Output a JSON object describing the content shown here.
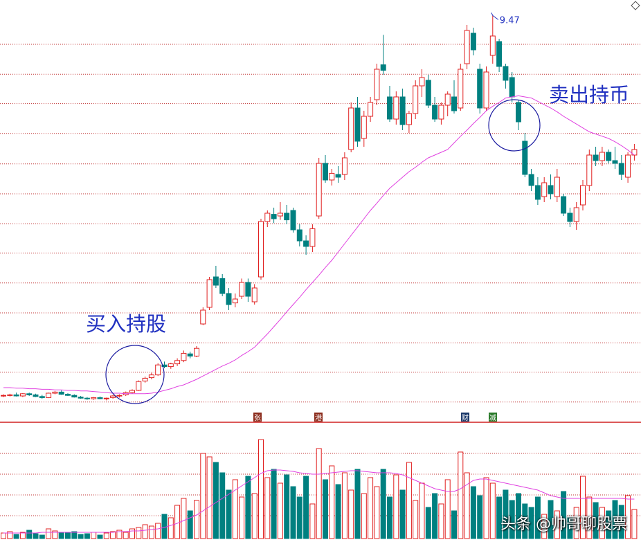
{
  "chart_data": {
    "type": "candlestick",
    "ylim": [
      2.1,
      9.75
    ],
    "ygrid": [
      8.95,
      8.41,
      7.88,
      7.34,
      6.79,
      6.25,
      5.71,
      5.18,
      4.64,
      4.1,
      3.56,
      3.03,
      2.49
    ],
    "vol_lim": [
      0,
      166
    ],
    "vol_grid": [
      33,
      63,
      93,
      123
    ],
    "up_color": "#e02020",
    "down_color": "#008080",
    "ma_color": "#e040e0",
    "grid_color": "#c03030",
    "ohlc": [
      [
        2.6,
        2.63,
        2.58,
        2.61
      ],
      [
        2.61,
        2.64,
        2.59,
        2.62
      ],
      [
        2.62,
        2.66,
        2.59,
        2.6
      ],
      [
        2.6,
        2.65,
        2.58,
        2.64
      ],
      [
        2.64,
        2.66,
        2.6,
        2.62
      ],
      [
        2.62,
        2.64,
        2.58,
        2.59
      ],
      [
        2.59,
        2.62,
        2.55,
        2.57
      ],
      [
        2.57,
        2.66,
        2.56,
        2.65
      ],
      [
        2.65,
        2.69,
        2.63,
        2.67
      ],
      [
        2.67,
        2.7,
        2.62,
        2.63
      ],
      [
        2.63,
        2.65,
        2.6,
        2.61
      ],
      [
        2.61,
        2.63,
        2.57,
        2.58
      ],
      [
        2.58,
        2.6,
        2.55,
        2.56
      ],
      [
        2.56,
        2.58,
        2.53,
        2.55
      ],
      [
        2.55,
        2.58,
        2.53,
        2.57
      ],
      [
        2.57,
        2.59,
        2.54,
        2.55
      ],
      [
        2.55,
        2.57,
        2.52,
        2.56
      ],
      [
        2.57,
        2.62,
        2.55,
        2.6
      ],
      [
        2.6,
        2.63,
        2.57,
        2.61
      ],
      [
        2.62,
        2.68,
        2.6,
        2.66
      ],
      [
        2.66,
        2.72,
        2.64,
        2.7
      ],
      [
        2.7,
        2.88,
        2.69,
        2.86
      ],
      [
        2.87,
        2.95,
        2.84,
        2.92
      ],
      [
        2.93,
        3.02,
        2.9,
        2.98
      ],
      [
        2.98,
        3.19,
        2.96,
        3.16
      ],
      [
        3.16,
        3.22,
        3.1,
        3.13
      ],
      [
        3.13,
        3.2,
        3.09,
        3.18
      ],
      [
        3.18,
        3.28,
        3.14,
        3.24
      ],
      [
        3.24,
        3.42,
        3.21,
        3.37
      ],
      [
        3.36,
        3.4,
        3.28,
        3.32
      ],
      [
        3.32,
        3.5,
        3.3,
        3.46
      ],
      [
        3.9,
        4.2,
        3.88,
        4.15
      ],
      [
        4.2,
        4.75,
        4.15,
        4.7
      ],
      [
        4.75,
        4.95,
        4.55,
        4.6
      ],
      [
        4.72,
        4.8,
        4.4,
        4.45
      ],
      [
        4.45,
        4.55,
        4.15,
        4.25
      ],
      [
        4.28,
        4.45,
        4.2,
        4.35
      ],
      [
        4.4,
        4.72,
        4.35,
        4.65
      ],
      [
        4.65,
        4.72,
        4.3,
        4.4
      ],
      [
        4.3,
        4.62,
        4.25,
        4.55
      ],
      [
        4.75,
        5.8,
        4.7,
        5.75
      ],
      [
        5.75,
        5.95,
        5.65,
        5.9
      ],
      [
        5.88,
        6.0,
        5.72,
        5.8
      ],
      [
        5.85,
        6.1,
        5.78,
        5.9
      ],
      [
        5.9,
        6.05,
        5.7,
        5.78
      ],
      [
        5.95,
        6.0,
        5.55,
        5.6
      ],
      [
        5.6,
        5.7,
        5.3,
        5.4
      ],
      [
        5.4,
        5.5,
        5.15,
        5.3
      ],
      [
        5.3,
        5.7,
        5.2,
        5.62
      ],
      [
        5.85,
        6.9,
        5.8,
        6.8
      ],
      [
        6.8,
        6.95,
        6.45,
        6.5
      ],
      [
        6.5,
        6.7,
        6.4,
        6.62
      ],
      [
        6.6,
        6.75,
        6.45,
        6.55
      ],
      [
        6.6,
        7.0,
        6.5,
        6.9
      ],
      [
        7.05,
        7.9,
        7.0,
        7.8
      ],
      [
        7.8,
        8.0,
        7.1,
        7.2
      ],
      [
        7.25,
        7.75,
        7.1,
        7.65
      ],
      [
        7.65,
        8.0,
        7.55,
        7.9
      ],
      [
        7.95,
        8.6,
        7.85,
        8.5
      ],
      [
        8.58,
        9.12,
        8.4,
        8.48
      ],
      [
        8.0,
        8.2,
        7.55,
        7.6
      ],
      [
        7.6,
        8.1,
        7.5,
        8.0
      ],
      [
        8.0,
        8.15,
        7.4,
        7.5
      ],
      [
        7.5,
        7.75,
        7.35,
        7.7
      ],
      [
        7.7,
        8.3,
        7.6,
        8.2
      ],
      [
        8.2,
        8.5,
        8.0,
        8.35
      ],
      [
        8.3,
        8.4,
        7.8,
        7.85
      ],
      [
        7.85,
        8.0,
        7.55,
        7.6
      ],
      [
        7.6,
        7.9,
        7.5,
        7.85
      ],
      [
        7.85,
        8.1,
        7.65,
        8.05
      ],
      [
        8.0,
        8.3,
        7.7,
        7.75
      ],
      [
        7.8,
        8.6,
        7.75,
        8.5
      ],
      [
        8.6,
        9.3,
        8.5,
        9.2
      ],
      [
        9.15,
        9.25,
        8.75,
        8.85
      ],
      [
        8.5,
        8.6,
        7.7,
        7.8
      ],
      [
        7.8,
        8.55,
        7.75,
        8.45
      ],
      [
        8.75,
        9.47,
        8.6,
        9.1
      ],
      [
        9.0,
        9.05,
        8.45,
        8.55
      ],
      [
        8.55,
        8.6,
        8.15,
        8.3
      ],
      [
        8.35,
        8.45,
        7.9,
        8.0
      ],
      [
        7.9,
        7.95,
        7.4,
        7.55
      ],
      [
        7.2,
        7.35,
        6.55,
        6.6
      ],
      [
        6.6,
        6.7,
        6.3,
        6.4
      ],
      [
        6.4,
        6.55,
        6.05,
        6.15
      ],
      [
        6.2,
        6.55,
        6.1,
        6.45
      ],
      [
        6.4,
        6.6,
        6.15,
        6.25
      ],
      [
        6.2,
        6.7,
        6.1,
        6.55
      ],
      [
        6.2,
        6.25,
        5.85,
        5.9
      ],
      [
        5.9,
        6.0,
        5.65,
        5.75
      ],
      [
        5.75,
        6.1,
        5.6,
        6.0
      ],
      [
        6.05,
        6.5,
        5.95,
        6.4
      ],
      [
        6.4,
        7.05,
        6.3,
        6.95
      ],
      [
        6.95,
        7.1,
        6.75,
        6.85
      ],
      [
        6.85,
        7.1,
        6.75,
        7.0
      ],
      [
        7.0,
        7.05,
        6.8,
        6.85
      ],
      [
        6.85,
        7.1,
        6.7,
        6.8
      ],
      [
        6.8,
        6.95,
        6.5,
        6.6
      ],
      [
        6.55,
        7.0,
        6.45,
        6.95
      ],
      [
        6.95,
        7.15,
        6.85,
        7.05
      ]
    ],
    "ma": [
      2.75,
      2.75,
      2.74,
      2.74,
      2.73,
      2.73,
      2.72,
      2.72,
      2.71,
      2.71,
      2.7,
      2.7,
      2.69,
      2.69,
      2.68,
      2.67,
      2.66,
      2.65,
      2.65,
      2.64,
      2.64,
      2.64,
      2.64,
      2.65,
      2.67,
      2.7,
      2.73,
      2.77,
      2.8,
      2.85,
      2.9,
      2.96,
      3.02,
      3.08,
      3.14,
      3.19,
      3.25,
      3.33,
      3.4,
      3.48,
      3.6,
      3.72,
      3.85,
      3.98,
      4.12,
      4.25,
      4.38,
      4.52,
      4.65,
      4.78,
      4.92,
      5.05,
      5.2,
      5.35,
      5.5,
      5.65,
      5.8,
      5.95,
      6.08,
      6.22,
      6.35,
      6.45,
      6.55,
      6.65,
      6.73,
      6.82,
      6.9,
      6.95,
      7.0,
      7.05,
      7.17,
      7.29,
      7.4,
      7.52,
      7.63,
      7.75,
      7.83,
      7.9,
      7.98,
      8.0,
      8.02,
      8.0,
      7.98,
      7.92,
      7.86,
      7.8,
      7.73,
      7.65,
      7.58,
      7.51,
      7.44,
      7.37,
      7.33,
      7.29,
      7.25,
      7.19,
      7.12,
      7.04,
      6.95
    ],
    "volume": [
      8,
      10,
      6,
      9,
      12,
      7,
      5,
      14,
      11,
      9,
      8,
      10,
      6,
      7,
      9,
      5,
      8,
      10,
      12,
      9,
      14,
      16,
      20,
      18,
      22,
      35,
      30,
      48,
      58,
      40,
      55,
      123,
      118,
      110,
      95,
      70,
      85,
      60,
      90,
      65,
      143,
      88,
      100,
      80,
      92,
      75,
      60,
      90,
      50,
      130,
      85,
      105,
      78,
      95,
      70,
      100,
      65,
      88,
      75,
      100,
      60,
      92,
      70,
      110,
      55,
      80,
      45,
      65,
      50,
      85,
      40,
      125,
      95,
      75,
      62,
      88,
      80,
      60,
      70,
      55,
      65,
      50,
      45,
      60,
      35,
      55,
      40,
      68,
      30,
      45,
      90,
      60,
      52,
      45,
      40,
      55,
      48,
      62,
      42
    ],
    "vol_ma": [
      8,
      8,
      8,
      8,
      8,
      8,
      9,
      9,
      9,
      9,
      9,
      9,
      9,
      9,
      9,
      9,
      9,
      9,
      10,
      10,
      11,
      11,
      12,
      13,
      14,
      16,
      19,
      22,
      26,
      30,
      34,
      40,
      46,
      52,
      58,
      64,
      70,
      76,
      82,
      88,
      94,
      98,
      99,
      99,
      98,
      97,
      95,
      94,
      93,
      93,
      94,
      95,
      96,
      97,
      98,
      98,
      97,
      96,
      95,
      95,
      95,
      94,
      92,
      88,
      84,
      80,
      76,
      72,
      70,
      68,
      68,
      72,
      78,
      84,
      86,
      86,
      84,
      82,
      80,
      78,
      76,
      74,
      72,
      70,
      66,
      62,
      60,
      58,
      58,
      58,
      58,
      58,
      58,
      58,
      58,
      58,
      58,
      57,
      57
    ],
    "events": [
      {
        "label": "张",
        "color": "#8b2c1c"
      },
      {
        "label": "港",
        "color": "#8b2c1c"
      },
      {
        "label": "财",
        "color": "#1c3a6b"
      },
      {
        "label": "减",
        "color": "#2a7a2a"
      }
    ],
    "annotations": [
      "买入持股",
      "卖出持币"
    ],
    "watermark": "头条 @帅哥聊股票"
  }
}
